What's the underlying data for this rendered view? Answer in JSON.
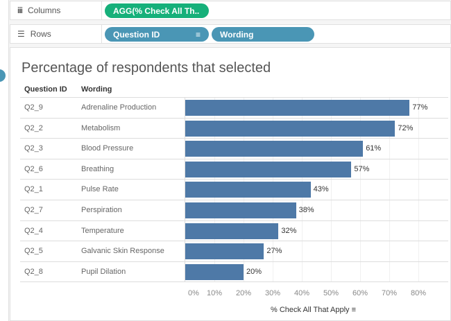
{
  "shelves": {
    "columns": {
      "label": "Columns",
      "icon": "columns-icon",
      "pills": [
        "AGG(% Check All Th.."
      ]
    },
    "rows": {
      "label": "Rows",
      "icon": "rows-icon",
      "pills": [
        "Question ID",
        "Wording"
      ]
    }
  },
  "colors": {
    "columns_pill": "#16b07a",
    "rows_pill": "#4a96b5",
    "bar": "#4e79a7"
  },
  "chart_data": {
    "type": "bar",
    "orientation": "horizontal",
    "title": "Percentage of respondents that selected",
    "row_headers": [
      "Question ID",
      "Wording"
    ],
    "question_ids": [
      "Q2_9",
      "Q2_2",
      "Q2_3",
      "Q2_6",
      "Q2_1",
      "Q2_7",
      "Q2_4",
      "Q2_5",
      "Q2_8"
    ],
    "categories": [
      "Adrenaline Production",
      "Metabolism",
      "Blood Pressure",
      "Breathing",
      "Pulse Rate",
      "Perspiration",
      "Temperature",
      "Galvanic Skin Response",
      "Pupil Dilation"
    ],
    "values": [
      77,
      72,
      61,
      57,
      43,
      38,
      32,
      27,
      20
    ],
    "value_labels": [
      "77%",
      "72%",
      "61%",
      "57%",
      "43%",
      "38%",
      "32%",
      "27%",
      "20%"
    ],
    "xlabel": "% Check All That Apply",
    "xlim": [
      0,
      80
    ],
    "xticks": [
      "0%",
      "10%",
      "20%",
      "30%",
      "40%",
      "50%",
      "60%",
      "70%",
      "80%"
    ],
    "grid": true,
    "sorted": "descending"
  }
}
